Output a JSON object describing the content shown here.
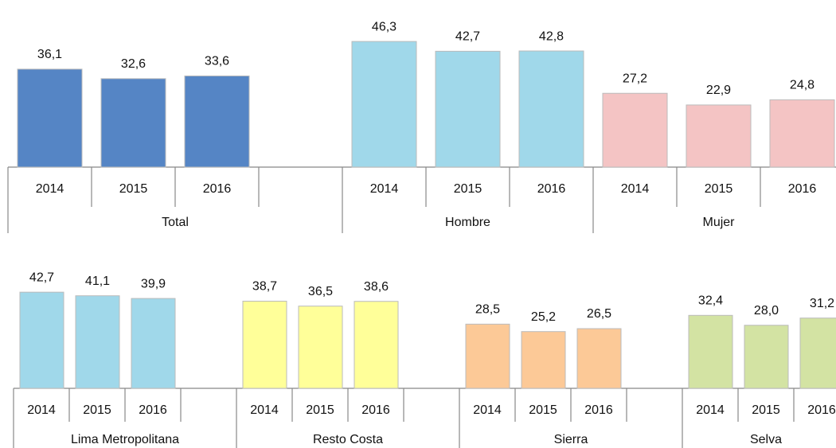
{
  "chart_data": [
    {
      "type": "bar",
      "groups": [
        {
          "name": "Total",
          "color": "#5585c5",
          "categories": [
            "2014",
            "2015",
            "2016"
          ],
          "values": [
            36.1,
            32.6,
            33.6
          ],
          "value_labels": [
            "36,1",
            "32,6",
            "33,6"
          ]
        },
        {
          "name": "Hombre",
          "color": "#a0d8ea",
          "categories": [
            "2014",
            "2015",
            "2016"
          ],
          "values": [
            46.3,
            42.7,
            42.8
          ],
          "value_labels": [
            "46,3",
            "42,7",
            "42,8"
          ]
        },
        {
          "name": "Mujer",
          "color": "#f4c4c4",
          "categories": [
            "2014",
            "2015",
            "2016"
          ],
          "values": [
            27.2,
            22.9,
            24.8
          ],
          "value_labels": [
            "27,2",
            "22,9",
            "24,8"
          ]
        }
      ]
    },
    {
      "type": "bar",
      "groups": [
        {
          "name": "Lima Metropolitana",
          "color": "#a0d8ea",
          "categories": [
            "2014",
            "2015",
            "2016"
          ],
          "values": [
            42.7,
            41.1,
            39.9
          ],
          "value_labels": [
            "42,7",
            "41,1",
            "39,9"
          ]
        },
        {
          "name": "Resto Costa",
          "color": "#ffff99",
          "categories": [
            "2014",
            "2015",
            "2016"
          ],
          "values": [
            38.7,
            36.5,
            38.6
          ],
          "value_labels": [
            "38,7",
            "36,5",
            "38,6"
          ]
        },
        {
          "name": "Sierra",
          "color": "#fcc997",
          "categories": [
            "2014",
            "2015",
            "2016"
          ],
          "values": [
            28.5,
            25.2,
            26.5
          ],
          "value_labels": [
            "28,5",
            "25,2",
            "26,5"
          ]
        },
        {
          "name": "Selva",
          "color": "#d3e3a3",
          "categories": [
            "2014",
            "2015",
            "2016"
          ],
          "values": [
            32.4,
            28.0,
            31.2
          ],
          "value_labels": [
            "32,4",
            "28,0",
            "31,2"
          ]
        }
      ]
    }
  ]
}
